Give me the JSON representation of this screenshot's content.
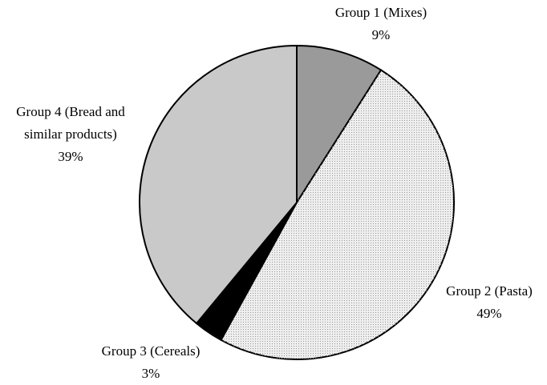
{
  "chart_data": {
    "type": "pie",
    "categories": [
      "Group 1 (Mixes)",
      "Group 2 (Pasta)",
      "Group 3 (Cereals)",
      "Group 4 (Bread and similar products)"
    ],
    "values": [
      9,
      49,
      3,
      39
    ],
    "value_labels": [
      "9%",
      "49%",
      "3%",
      "39%"
    ],
    "colors": [
      "#9a9a9a",
      "#eeeeee",
      "#000000",
      "#c9c9c9"
    ]
  }
}
